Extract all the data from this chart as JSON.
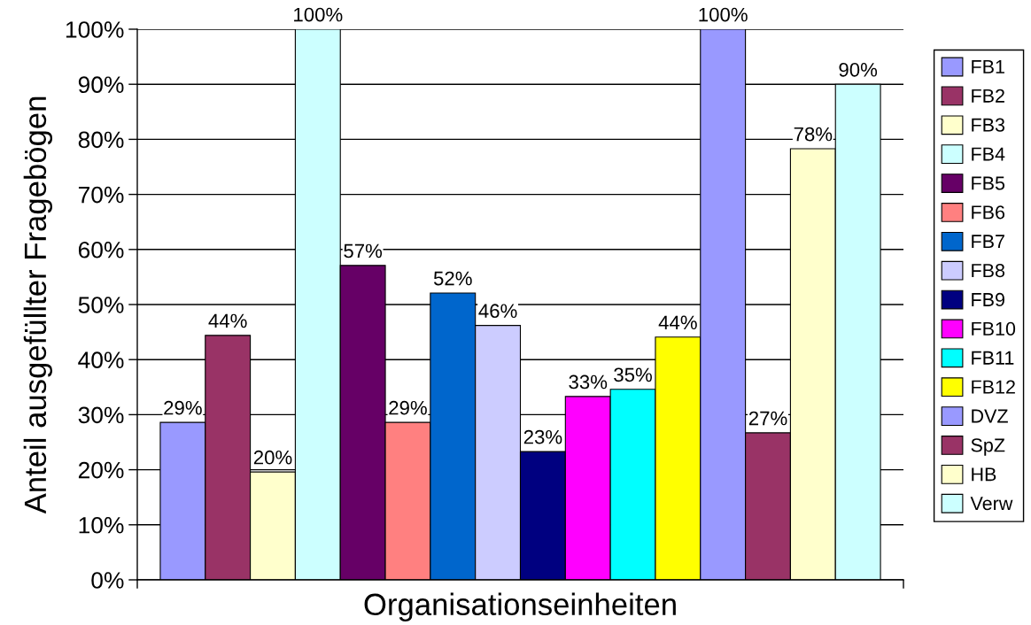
{
  "chart_data": {
    "type": "bar",
    "xlabel": "Organisationseinheiten",
    "ylabel": "Anteil ausgefüllter Fragebögen",
    "categories": [
      null
    ],
    "series": [
      {
        "name": "FB1",
        "color": "#9999ff",
        "values": [
          28.6
        ],
        "value_labels": [
          "29%"
        ]
      },
      {
        "name": "FB2",
        "color": "#993366",
        "values": [
          44.4
        ],
        "value_labels": [
          "44%"
        ]
      },
      {
        "name": "FB3",
        "color": "#ffffcc",
        "values": [
          19.6
        ],
        "value_labels": [
          "20%"
        ]
      },
      {
        "name": "FB4",
        "color": "#ccffff",
        "values": [
          100
        ],
        "value_labels": [
          "100%"
        ]
      },
      {
        "name": "FB5",
        "color": "#660066",
        "values": [
          57.1
        ],
        "value_labels": [
          "57%"
        ]
      },
      {
        "name": "FB6",
        "color": "#ff8080",
        "values": [
          28.6
        ],
        "value_labels": [
          "29%"
        ]
      },
      {
        "name": "FB7",
        "color": "#0066cc",
        "values": [
          52.1
        ],
        "value_labels": [
          "52%"
        ]
      },
      {
        "name": "FB8",
        "color": "#ccccff",
        "values": [
          46.2
        ],
        "value_labels": [
          "46%"
        ]
      },
      {
        "name": "FB9",
        "color": "#000080",
        "values": [
          23.3
        ],
        "value_labels": [
          "23%"
        ]
      },
      {
        "name": "FB10",
        "color": "#ff00ff",
        "values": [
          33.3
        ],
        "value_labels": [
          "33%"
        ]
      },
      {
        "name": "FB11",
        "color": "#00ffff",
        "values": [
          34.6
        ],
        "value_labels": [
          "35%"
        ]
      },
      {
        "name": "FB12",
        "color": "#ffff00",
        "values": [
          44.1
        ],
        "value_labels": [
          "44%"
        ]
      },
      {
        "name": "DVZ",
        "color": "#9999ff",
        "values": [
          100
        ],
        "value_labels": [
          "100%"
        ]
      },
      {
        "name": "SpZ",
        "color": "#993366",
        "values": [
          26.7
        ],
        "value_labels": [
          "27%"
        ]
      },
      {
        "name": "HB",
        "color": "#ffffcc",
        "values": [
          78.3
        ],
        "value_labels": [
          "78%"
        ]
      },
      {
        "name": "Verw",
        "color": "#ccffff",
        "values": [
          90
        ],
        "value_labels": [
          "90%"
        ]
      }
    ],
    "ylim": [
      0,
      100
    ],
    "yticks": [
      {
        "value": 0,
        "label": "0%"
      },
      {
        "value": 10,
        "label": "10%"
      },
      {
        "value": 20,
        "label": "20%"
      },
      {
        "value": 30,
        "label": "30%"
      },
      {
        "value": 40,
        "label": "40%"
      },
      {
        "value": 50,
        "label": "50%"
      },
      {
        "value": 60,
        "label": "60%"
      },
      {
        "value": 70,
        "label": "70%"
      },
      {
        "value": 80,
        "label": "80%"
      },
      {
        "value": 90,
        "label": "90%"
      },
      {
        "value": 100,
        "label": "100%"
      }
    ],
    "grid": "y",
    "legend": "right"
  }
}
